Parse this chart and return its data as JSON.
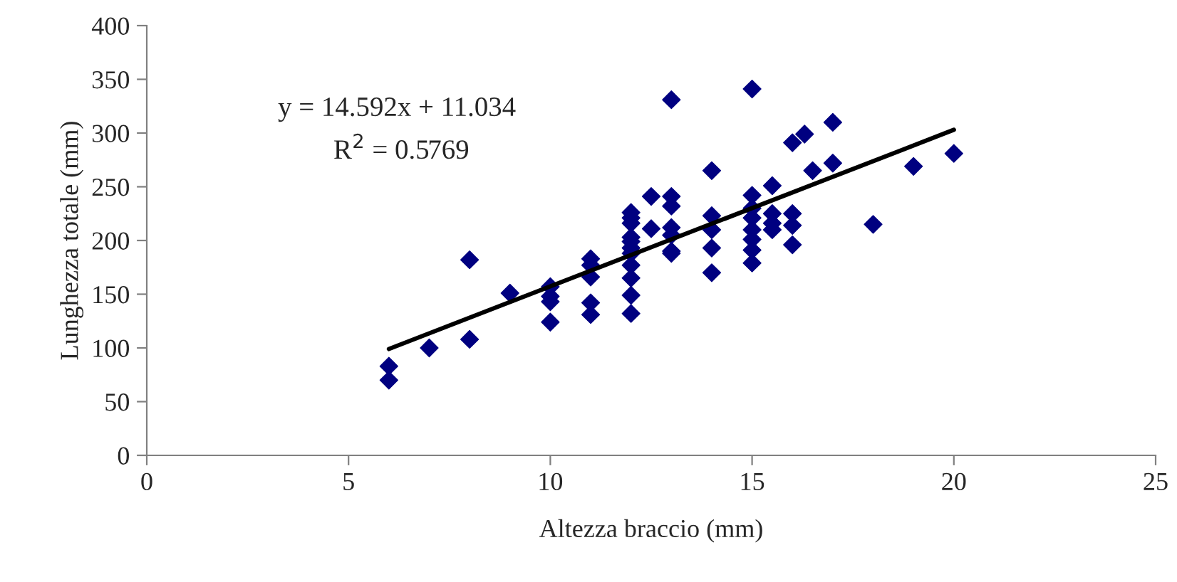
{
  "chart_data": {
    "type": "scatter",
    "xlabel": "Altezza braccio (mm)",
    "ylabel": "Lunghezza totale (mm)",
    "xlim": [
      0,
      25
    ],
    "xticks": [
      0,
      5,
      10,
      15,
      20,
      25
    ],
    "ylim": [
      0,
      400
    ],
    "yticks": [
      0,
      50,
      100,
      150,
      200,
      250,
      300,
      350,
      400
    ],
    "grid": false,
    "legend": false,
    "annotations": [
      "y = 14.592x + 11.034",
      "R$^{2}$ = 0.5769"
    ],
    "series": [
      {
        "marker": "diamond",
        "color": "#000080",
        "x": [
          6,
          6,
          7,
          8,
          8,
          9,
          10,
          10,
          10,
          10,
          11,
          11,
          11,
          11,
          11,
          12,
          12,
          12,
          12,
          12,
          12,
          12,
          12,
          12,
          12,
          12,
          12.5,
          12.5,
          13,
          13,
          13,
          13,
          13,
          13,
          13,
          14,
          14,
          14,
          14,
          14,
          15,
          15,
          15,
          15,
          15,
          15,
          15,
          15,
          15.5,
          15.5,
          15.5,
          15.5,
          16,
          16,
          16,
          16,
          16.3,
          16.5,
          17,
          17,
          18,
          19,
          20
        ],
        "values": [
          83,
          70,
          100,
          182,
          108,
          151,
          157,
          148,
          143,
          124,
          183,
          177,
          166,
          142,
          131,
          226,
          221,
          216,
          203,
          199,
          193,
          188,
          177,
          165,
          149,
          132,
          241,
          211,
          331,
          241,
          232,
          212,
          205,
          190,
          188,
          265,
          223,
          210,
          193,
          170,
          341,
          242,
          230,
          221,
          210,
          201,
          191,
          179,
          251,
          225,
          216,
          210,
          291,
          225,
          214,
          196,
          299,
          265,
          310,
          272,
          215,
          269,
          281
        ]
      },
      {
        "type": "line",
        "marker": "none",
        "color": "#000000",
        "x": [
          6,
          20
        ],
        "values": [
          99,
          303
        ]
      }
    ]
  }
}
